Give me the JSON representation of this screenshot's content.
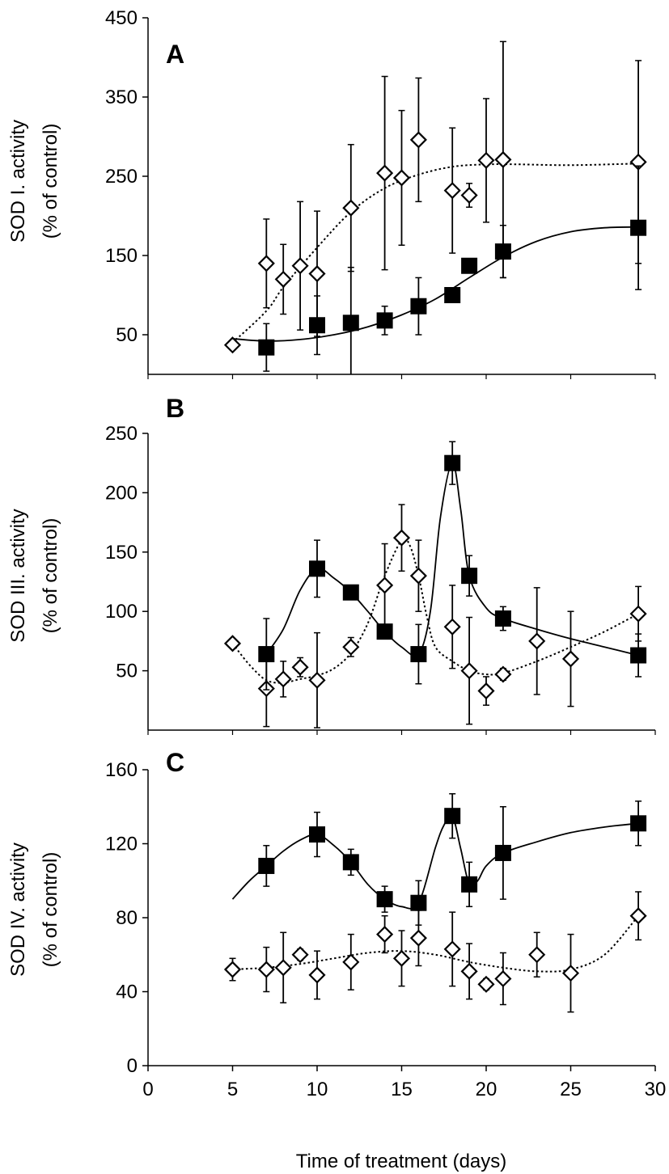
{
  "figure": {
    "xlabel": "Time of treatment (days)",
    "xlim": [
      0,
      30
    ],
    "xticks": [
      0,
      5,
      10,
      15,
      20,
      25,
      30
    ],
    "colors": {
      "line": "#000000",
      "open_fill": "#ffffff",
      "filled": "#000000"
    }
  },
  "chart_data": [
    {
      "type": "line",
      "panel": "A",
      "ylabel": [
        "SOD I. activity",
        "(% of control)"
      ],
      "ylim": [
        0,
        450
      ],
      "yticks": [
        50,
        150,
        250,
        350,
        450
      ],
      "series": [
        {
          "name": "open diamonds",
          "marker": "diamond-open",
          "line": "dotted",
          "points": [
            {
              "x": 5,
              "y": 37,
              "err": 6
            },
            {
              "x": 7,
              "y": 140,
              "err": 56
            },
            {
              "x": 8,
              "y": 120,
              "err": 44
            },
            {
              "x": 9,
              "y": 137,
              "err": 81
            },
            {
              "x": 10,
              "y": 127,
              "err": 79
            },
            {
              "x": 12,
              "y": 210,
              "err": 80
            },
            {
              "x": 14,
              "y": 254,
              "err": 122
            },
            {
              "x": 15,
              "y": 248,
              "err": 85
            },
            {
              "x": 16,
              "y": 296,
              "err": 78
            },
            {
              "x": 18,
              "y": 232,
              "err": 79
            },
            {
              "x": 19,
              "y": 226,
              "err": 15
            },
            {
              "x": 20,
              "y": 270,
              "err": 78
            },
            {
              "x": 21,
              "y": 271,
              "err": 149
            },
            {
              "x": 29,
              "y": 268,
              "err": 128
            }
          ],
          "curve": [
            [
              5,
              40
            ],
            [
              7,
              80
            ],
            [
              8,
              110
            ],
            [
              10,
              160
            ],
            [
              12,
              205
            ],
            [
              14,
              235
            ],
            [
              16,
              252
            ],
            [
              18,
              262
            ],
            [
              20,
              265
            ],
            [
              22,
              265
            ],
            [
              25,
              264
            ],
            [
              29,
              266
            ]
          ]
        },
        {
          "name": "filled squares",
          "marker": "square-filled",
          "line": "solid",
          "points": [
            {
              "x": 7,
              "y": 34,
              "err": 30
            },
            {
              "x": 10,
              "y": 62,
              "err": 37
            },
            {
              "x": 12,
              "y": 65,
              "err": 70
            },
            {
              "x": 14,
              "y": 68,
              "err": 18
            },
            {
              "x": 16,
              "y": 86,
              "err": 36
            },
            {
              "x": 18,
              "y": 100,
              "err": 0
            },
            {
              "x": 19,
              "y": 137,
              "err": 9
            },
            {
              "x": 21,
              "y": 155,
              "err": 33
            },
            {
              "x": 29,
              "y": 185,
              "err": 78
            }
          ],
          "curve": [
            [
              5,
              45
            ],
            [
              7,
              42
            ],
            [
              9,
              44
            ],
            [
              11,
              50
            ],
            [
              13,
              60
            ],
            [
              15,
              75
            ],
            [
              17,
              95
            ],
            [
              19,
              122
            ],
            [
              21,
              148
            ],
            [
              23,
              168
            ],
            [
              25,
              180
            ],
            [
              27,
              185
            ],
            [
              29,
              186
            ]
          ]
        }
      ]
    },
    {
      "type": "line",
      "panel": "B",
      "ylabel": [
        "SOD III. activity",
        "(% of control)"
      ],
      "ylim": [
        0,
        250
      ],
      "yticks": [
        50,
        100,
        150,
        200,
        250
      ],
      "series": [
        {
          "name": "open diamonds",
          "marker": "diamond-open",
          "line": "dotted",
          "points": [
            {
              "x": 5,
              "y": 73,
              "err": 4
            },
            {
              "x": 7,
              "y": 35,
              "err": 32
            },
            {
              "x": 8,
              "y": 43,
              "err": 15
            },
            {
              "x": 9,
              "y": 53,
              "err": 8
            },
            {
              "x": 10,
              "y": 42,
              "err": 40
            },
            {
              "x": 12,
              "y": 70,
              "err": 8
            },
            {
              "x": 14,
              "y": 122,
              "err": 35
            },
            {
              "x": 15,
              "y": 162,
              "err": 28
            },
            {
              "x": 16,
              "y": 130,
              "err": 30
            },
            {
              "x": 18,
              "y": 87,
              "err": 35
            },
            {
              "x": 19,
              "y": 50,
              "err": 45
            },
            {
              "x": 20,
              "y": 33,
              "err": 12
            },
            {
              "x": 21,
              "y": 47,
              "err": 5
            },
            {
              "x": 23,
              "y": 75,
              "err": 45
            },
            {
              "x": 25,
              "y": 60,
              "err": 40
            },
            {
              "x": 29,
              "y": 98,
              "err": 23
            }
          ],
          "curve": [
            [
              5,
              73
            ],
            [
              6,
              55
            ],
            [
              7,
              42
            ],
            [
              8,
              40
            ],
            [
              9,
              43
            ],
            [
              10,
              46
            ],
            [
              11,
              52
            ],
            [
              12,
              65
            ],
            [
              13,
              90
            ],
            [
              14,
              130
            ],
            [
              15,
              160
            ],
            [
              15.5,
              155
            ],
            [
              16,
              130
            ],
            [
              16.5,
              95
            ],
            [
              17,
              70
            ],
            [
              18,
              58
            ],
            [
              19,
              50
            ],
            [
              20,
              47
            ],
            [
              21,
              48
            ],
            [
              23,
              58
            ],
            [
              25,
              70
            ],
            [
              27,
              83
            ],
            [
              29,
              98
            ]
          ]
        },
        {
          "name": "filled squares",
          "marker": "square-filled",
          "line": "solid",
          "points": [
            {
              "x": 7,
              "y": 64,
              "err": 30
            },
            {
              "x": 10,
              "y": 136,
              "err": 24
            },
            {
              "x": 12,
              "y": 116,
              "err": 0
            },
            {
              "x": 14,
              "y": 83,
              "err": 0
            },
            {
              "x": 16,
              "y": 64,
              "err": 25
            },
            {
              "x": 18,
              "y": 225,
              "err": 18
            },
            {
              "x": 19,
              "y": 130,
              "err": 17
            },
            {
              "x": 21,
              "y": 94,
              "err": 10
            },
            {
              "x": 29,
              "y": 63,
              "err": 18
            }
          ],
          "curve": [
            [
              7,
              64
            ],
            [
              8,
              85
            ],
            [
              9,
              118
            ],
            [
              10,
              136
            ],
            [
              11,
              128
            ],
            [
              12,
              116
            ],
            [
              13,
              100
            ],
            [
              14,
              83
            ],
            [
              15,
              70
            ],
            [
              16,
              64
            ],
            [
              16.7,
              100
            ],
            [
              17.3,
              180
            ],
            [
              18,
              225
            ],
            [
              18.5,
              185
            ],
            [
              19,
              130
            ],
            [
              20,
              103
            ],
            [
              21,
              94
            ],
            [
              23,
              85
            ],
            [
              25,
              77
            ],
            [
              27,
              70
            ],
            [
              29,
              63
            ]
          ]
        }
      ]
    },
    {
      "type": "line",
      "panel": "C",
      "ylabel": [
        "SOD IV. activity",
        "(% of control)"
      ],
      "ylim": [
        0,
        160
      ],
      "yticks": [
        0,
        40,
        80,
        120,
        160
      ],
      "series": [
        {
          "name": "open diamonds",
          "marker": "diamond-open",
          "line": "dotted",
          "points": [
            {
              "x": 5,
              "y": 52,
              "err": 6
            },
            {
              "x": 7,
              "y": 52,
              "err": 12
            },
            {
              "x": 8,
              "y": 53,
              "err": 19
            },
            {
              "x": 9,
              "y": 60,
              "err": 3
            },
            {
              "x": 10,
              "y": 49,
              "err": 13
            },
            {
              "x": 12,
              "y": 56,
              "err": 15
            },
            {
              "x": 14,
              "y": 71,
              "err": 10
            },
            {
              "x": 15,
              "y": 58,
              "err": 15
            },
            {
              "x": 16,
              "y": 69,
              "err": 15
            },
            {
              "x": 18,
              "y": 63,
              "err": 20
            },
            {
              "x": 19,
              "y": 51,
              "err": 15
            },
            {
              "x": 20,
              "y": 44,
              "err": 3
            },
            {
              "x": 21,
              "y": 47,
              "err": 14
            },
            {
              "x": 23,
              "y": 60,
              "err": 12
            },
            {
              "x": 25,
              "y": 50,
              "err": 21
            },
            {
              "x": 29,
              "y": 81,
              "err": 13
            }
          ],
          "curve": [
            [
              5,
              52
            ],
            [
              7,
              53
            ],
            [
              9,
              55
            ],
            [
              11,
              58
            ],
            [
              13,
              61
            ],
            [
              15,
              62
            ],
            [
              17,
              60
            ],
            [
              19,
              56
            ],
            [
              21,
              53
            ],
            [
              23,
              51
            ],
            [
              25,
              52
            ],
            [
              27,
              60
            ],
            [
              29,
              81
            ]
          ]
        },
        {
          "name": "filled squares",
          "marker": "square-filled",
          "line": "solid",
          "points": [
            {
              "x": 7,
              "y": 108,
              "err": 11
            },
            {
              "x": 10,
              "y": 125,
              "err": 12
            },
            {
              "x": 12,
              "y": 110,
              "err": 7
            },
            {
              "x": 14,
              "y": 90,
              "err": 7
            },
            {
              "x": 16,
              "y": 88,
              "err": 12
            },
            {
              "x": 18,
              "y": 135,
              "err": 12
            },
            {
              "x": 19,
              "y": 98,
              "err": 12
            },
            {
              "x": 21,
              "y": 115,
              "err": 25
            },
            {
              "x": 29,
              "y": 131,
              "err": 12
            }
          ],
          "curve": [
            [
              5,
              90
            ],
            [
              6,
              100
            ],
            [
              7,
              108
            ],
            [
              8,
              116
            ],
            [
              9,
              122
            ],
            [
              10,
              125
            ],
            [
              11,
              119
            ],
            [
              12,
              110
            ],
            [
              13,
              98
            ],
            [
              14,
              90
            ],
            [
              15,
              86
            ],
            [
              16,
              88
            ],
            [
              17,
              118
            ],
            [
              17.5,
              130
            ],
            [
              18,
              135
            ],
            [
              18.5,
              117
            ],
            [
              19,
              98
            ],
            [
              19.5,
              100
            ],
            [
              20,
              108
            ],
            [
              21,
              115
            ],
            [
              23,
              121
            ],
            [
              25,
              126
            ],
            [
              27,
              129
            ],
            [
              29,
              131
            ]
          ]
        }
      ]
    }
  ]
}
